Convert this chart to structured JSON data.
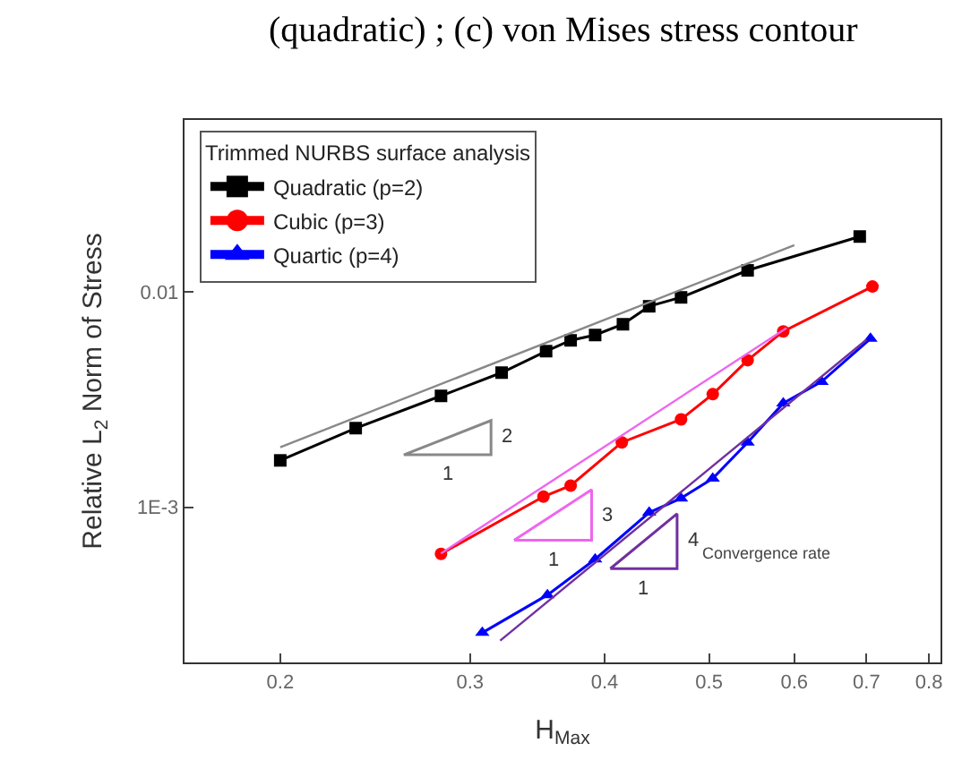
{
  "chart_data": {
    "type": "line",
    "xlabel": "H$_{Max}$",
    "ylabel": "Relative L$_{2}$ Norm of Stress",
    "legend_title": "Trimmed NURBS surface analysis",
    "legend": "top left",
    "log": "xy",
    "xlim": [
      0.163,
      0.82
    ],
    "xticks": [
      0.2,
      0.3,
      0.4,
      0.5,
      0.6,
      0.7,
      0.8
    ],
    "ylim": [
      0.00019,
      0.063
    ],
    "yticks": [
      0.01,
      {
        "value": 0.001,
        "label": "1E-3"
      }
    ],
    "series": [
      {
        "name": "Quadratic (p=2)",
        "color": "#000000",
        "marker": "square",
        "x": [
          0.2,
          0.235,
          0.282,
          0.321,
          0.353,
          0.372,
          0.392,
          0.416,
          0.44,
          0.471,
          0.543,
          0.69
        ],
        "values": [
          0.00165,
          0.00233,
          0.00329,
          0.00422,
          0.00531,
          0.00596,
          0.00631,
          0.00708,
          0.00858,
          0.00944,
          0.0126,
          0.0181
        ]
      },
      {
        "name": "Cubic (p=3)",
        "color": "#ff0000",
        "marker": "circle",
        "x": [
          0.282,
          0.351,
          0.372,
          0.415,
          0.471,
          0.504,
          0.543,
          0.586,
          0.709
        ],
        "values": [
          0.000607,
          0.00112,
          0.00126,
          0.002,
          0.00256,
          0.00335,
          0.00482,
          0.00656,
          0.0106
        ]
      },
      {
        "name": "Quartic (p=4)",
        "color": "#0000ff",
        "marker": "triangle",
        "x": [
          0.308,
          0.354,
          0.392,
          0.44,
          0.471,
          0.504,
          0.543,
          0.586,
          0.636,
          0.706
        ],
        "values": [
          0.000261,
          0.000391,
          0.000573,
          0.000944,
          0.0011,
          0.00136,
          0.002,
          0.00304,
          0.00383,
          0.00607
        ]
      },
      {
        "type": "line",
        "color": "#888888",
        "marker": "none",
        "x": [
          0.2,
          0.6
        ],
        "values": [
          0.0019,
          0.0165
        ]
      },
      {
        "type": "line",
        "color": "#ee66ee",
        "marker": "none",
        "x": [
          0.282,
          0.59
        ],
        "values": [
          0.00061,
          0.0068
        ]
      },
      {
        "type": "line",
        "color": "#7030a0",
        "marker": "none",
        "x": [
          0.32,
          0.7
        ],
        "values": [
          0.00024,
          0.006
        ]
      }
    ],
    "annotations": [
      "(quadratic) ; (c) von Mises stress contour",
      "Convergence rate",
      "1",
      "2",
      "1",
      "3",
      "1",
      "4"
    ]
  }
}
